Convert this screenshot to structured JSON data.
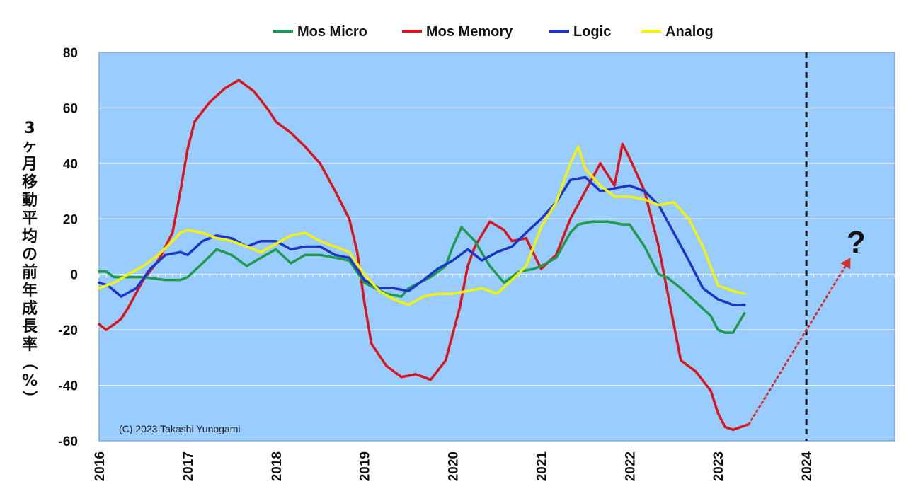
{
  "chart_data": {
    "type": "line",
    "title": "",
    "xlabel": "",
    "ylabel": "3ヶ月移動平均の前年成長率（%）",
    "x_tick_labels": [
      "2016",
      "2017",
      "2018",
      "2019",
      "2020",
      "2021",
      "2022",
      "2023",
      "2024"
    ],
    "y_tick_labels": [
      "80",
      "60",
      "40",
      "20",
      "0",
      "-20",
      "-40",
      "-60"
    ],
    "ylim": [
      -60,
      80
    ],
    "xlim": [
      2016.0,
      2025.0
    ],
    "grid": true,
    "legend_position": "top",
    "copyright": "(C)  2023 Takashi Yunogami",
    "annotation_mark": "?",
    "projection": {
      "from": [
        2023.35,
        -54
      ],
      "to": [
        2024.5,
        6
      ],
      "color": "#d0312d"
    },
    "vertical_marker": {
      "x": 2024.0,
      "style": "dashed"
    },
    "colors": {
      "plot_background": "#99ccff",
      "grid": "#e8f2ff",
      "mos_micro": "#1f9a4f",
      "mos_memory": "#d9161b",
      "logic": "#1f34c9",
      "analog": "#f2f20f",
      "marker": "#111111"
    },
    "series": [
      {
        "name": "Mos Micro",
        "color_key": "mos_micro",
        "x": [
          2016.0,
          2016.08,
          2016.17,
          2016.33,
          2016.5,
          2016.75,
          2016.92,
          2017.0,
          2017.17,
          2017.33,
          2017.5,
          2017.67,
          2017.83,
          2018.0,
          2018.17,
          2018.33,
          2018.5,
          2018.67,
          2018.83,
          2019.0,
          2019.25,
          2019.42,
          2019.5,
          2019.75,
          2019.92,
          2020.0,
          2020.1,
          2020.25,
          2020.42,
          2020.58,
          2020.75,
          2020.92,
          2021.0,
          2021.17,
          2021.33,
          2021.42,
          2021.58,
          2021.75,
          2021.92,
          2022.0,
          2022.17,
          2022.33,
          2022.42,
          2022.58,
          2022.75,
          2022.92,
          2023.0,
          2023.08,
          2023.17,
          2023.3
        ],
        "values": [
          1,
          1,
          -1,
          -1,
          -1,
          -2,
          -2,
          -1,
          4,
          9,
          7,
          3,
          6,
          9,
          4,
          7,
          7,
          6,
          5,
          -3,
          -7,
          -8,
          -5,
          -1,
          3,
          10,
          17,
          12,
          3,
          -3,
          1,
          2,
          3,
          6,
          15,
          18,
          19,
          19,
          18,
          18,
          10,
          0,
          -1,
          -5,
          -10,
          -15,
          -20,
          -21,
          -21,
          -14
        ]
      },
      {
        "name": "Mos Memory",
        "color_key": "mos_memory",
        "x": [
          2016.0,
          2016.08,
          2016.17,
          2016.25,
          2016.33,
          2016.5,
          2016.67,
          2016.83,
          2016.92,
          2017.0,
          2017.08,
          2017.25,
          2017.42,
          2017.58,
          2017.75,
          2017.92,
          2018.0,
          2018.17,
          2018.33,
          2018.5,
          2018.67,
          2018.83,
          2018.92,
          2019.0,
          2019.08,
          2019.25,
          2019.42,
          2019.58,
          2019.67,
          2019.75,
          2019.92,
          2020.08,
          2020.17,
          2020.25,
          2020.42,
          2020.58,
          2020.67,
          2020.83,
          2021.0,
          2021.17,
          2021.33,
          2021.5,
          2021.67,
          2021.83,
          2021.92,
          2022.0,
          2022.17,
          2022.33,
          2022.42,
          2022.58,
          2022.75,
          2022.92,
          2023.0,
          2023.08,
          2023.17,
          2023.35
        ],
        "values": [
          -18,
          -20,
          -18,
          -16,
          -12,
          -2,
          5,
          15,
          30,
          45,
          55,
          62,
          67,
          70,
          66,
          59,
          55,
          51,
          46,
          40,
          30,
          20,
          8,
          -10,
          -25,
          -33,
          -37,
          -36,
          -37,
          -38,
          -31,
          -12,
          3,
          10,
          19,
          16,
          12,
          13,
          2,
          7,
          20,
          30,
          40,
          32,
          47,
          42,
          30,
          10,
          -5,
          -31,
          -35,
          -42,
          -50,
          -55,
          -56,
          -54
        ]
      },
      {
        "name": "Logic",
        "color_key": "logic",
        "x": [
          2016.0,
          2016.1,
          2016.25,
          2016.42,
          2016.58,
          2016.75,
          2016.92,
          2017.0,
          2017.17,
          2017.33,
          2017.5,
          2017.67,
          2017.83,
          2018.0,
          2018.17,
          2018.33,
          2018.5,
          2018.67,
          2018.83,
          2019.0,
          2019.17,
          2019.33,
          2019.5,
          2019.67,
          2019.83,
          2020.0,
          2020.17,
          2020.33,
          2020.5,
          2020.67,
          2020.83,
          2021.0,
          2021.17,
          2021.33,
          2021.5,
          2021.67,
          2021.83,
          2022.0,
          2022.17,
          2022.33,
          2022.5,
          2022.67,
          2022.83,
          2023.0,
          2023.17,
          2023.3
        ],
        "values": [
          -3,
          -4,
          -8,
          -5,
          2,
          7,
          8,
          7,
          12,
          14,
          13,
          10,
          12,
          12,
          9,
          10,
          10,
          7,
          6,
          -2,
          -5,
          -5,
          -6,
          -2,
          2,
          5,
          9,
          5,
          8,
          10,
          15,
          20,
          26,
          34,
          35,
          30,
          31,
          32,
          30,
          25,
          15,
          5,
          -5,
          -9,
          -11,
          -11
        ]
      },
      {
        "name": "Analog",
        "color_key": "analog",
        "x": [
          2016.0,
          2016.17,
          2016.33,
          2016.5,
          2016.67,
          2016.83,
          2016.92,
          2017.0,
          2017.17,
          2017.33,
          2017.5,
          2017.67,
          2017.83,
          2018.0,
          2018.17,
          2018.33,
          2018.5,
          2018.67,
          2018.83,
          2019.0,
          2019.17,
          2019.33,
          2019.5,
          2019.67,
          2019.83,
          2020.0,
          2020.17,
          2020.33,
          2020.5,
          2020.67,
          2020.83,
          2021.0,
          2021.17,
          2021.33,
          2021.42,
          2021.5,
          2021.67,
          2021.83,
          2022.0,
          2022.17,
          2022.33,
          2022.5,
          2022.67,
          2022.83,
          2023.0,
          2023.17,
          2023.3
        ],
        "values": [
          -5,
          -3,
          0,
          3,
          7,
          12,
          15,
          16,
          15,
          13,
          12,
          10,
          8,
          11,
          14,
          15,
          12,
          10,
          8,
          0,
          -6,
          -9,
          -11,
          -8,
          -7,
          -7,
          -6,
          -5,
          -7,
          -2,
          3,
          17,
          26,
          40,
          46,
          38,
          32,
          28,
          28,
          27,
          25,
          26,
          20,
          10,
          -4,
          -6,
          -7
        ]
      }
    ]
  }
}
